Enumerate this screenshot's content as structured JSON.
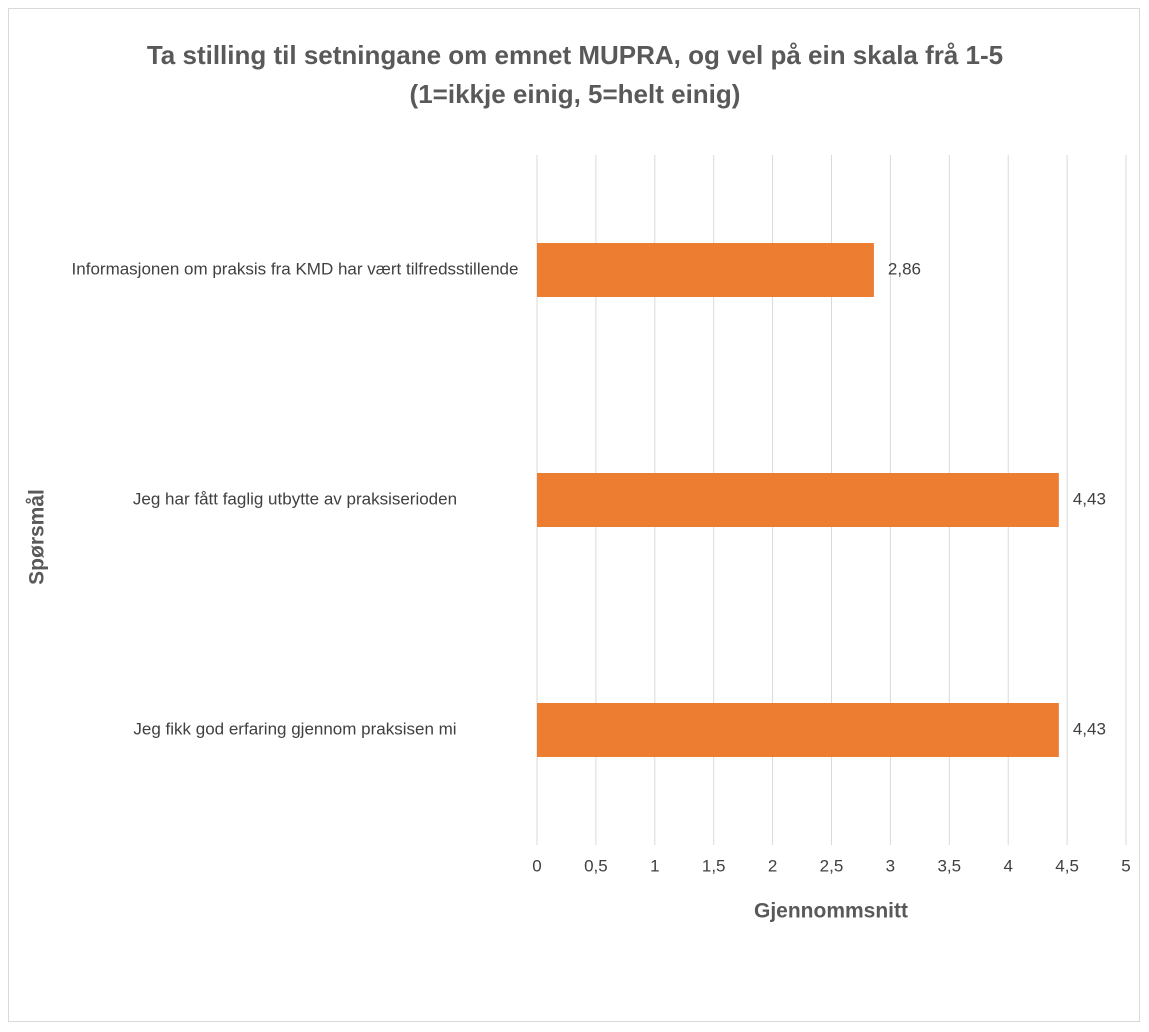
{
  "chart_data": {
    "type": "barh",
    "title": "Ta stilling til setningane om emnet MUPRA, og vel på ein skala frå 1-5 (1=ikkje einig, 5=helt einig)",
    "xlabel": "Gjennommsnitt",
    "ylabel": "Spørsmål",
    "categories": [
      "Informasjonen om praksis fra KMD har vært tilfredsstillende",
      "Jeg har fått faglig utbytte av praksiserioden",
      "Jeg fikk god erfaring gjennom praksisen mi"
    ],
    "values": [
      2.86,
      4.43,
      4.43
    ],
    "value_labels": [
      "2,86",
      "4,43",
      "4,43"
    ],
    "color": "#ed7d31",
    "xlim": [
      0,
      5
    ],
    "xticks": [
      0,
      {
        "value": 0.5,
        "label": "0,5"
      },
      1,
      {
        "value": 1.5,
        "label": "1,5"
      },
      2,
      {
        "value": 2.5,
        "label": "2,5"
      },
      3,
      {
        "value": 3.5,
        "label": "3,5"
      },
      4,
      {
        "value": 4.5,
        "label": "4,5"
      },
      5
    ],
    "grid": true
  }
}
